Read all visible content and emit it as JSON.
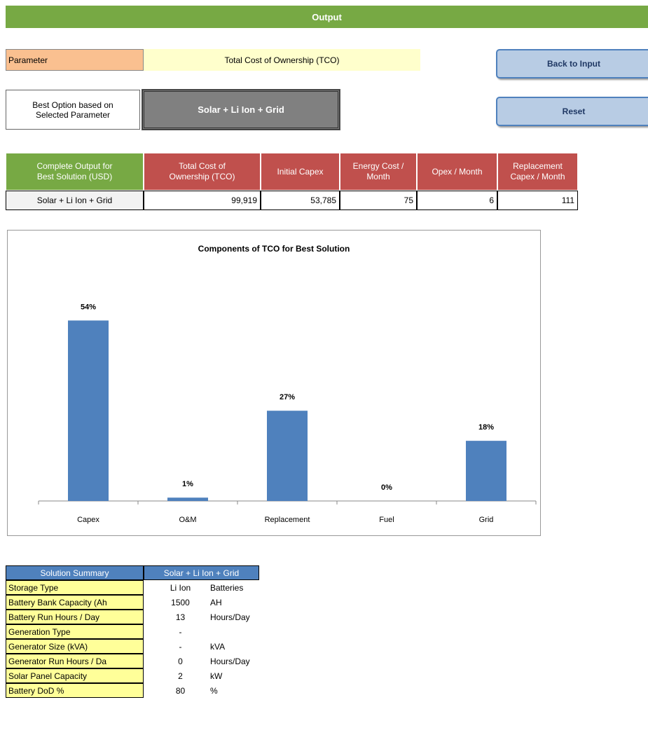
{
  "header": {
    "title": "Output"
  },
  "parameter": {
    "label": "Parameter",
    "value": "Total Cost of Ownership (TCO)"
  },
  "best_option": {
    "label_line1": "Best Option based on",
    "label_line2": "Selected Parameter",
    "value": "Solar + Li Ion + Grid"
  },
  "buttons": [
    "Back to Input",
    "Reset"
  ],
  "output_table": {
    "columns": [
      [
        "Complete Output for",
        "Best Solution (USD)"
      ],
      [
        "Total Cost of",
        "Ownership (TCO)"
      ],
      [
        "Initial Capex"
      ],
      [
        "Energy Cost /",
        "Month"
      ],
      [
        "Opex / Month"
      ],
      [
        "Replacement",
        "Capex / Month"
      ]
    ],
    "row": [
      "Solar + Li Ion + Grid",
      "99,919",
      "53,785",
      "75",
      "6",
      "111"
    ]
  },
  "chart_data": {
    "type": "bar",
    "title": "Components  of TCO for Best Solution",
    "categories": [
      "Capex",
      "O&M",
      "Replacement",
      "Fuel",
      "Grid"
    ],
    "values": [
      54,
      1,
      27,
      0,
      18
    ],
    "value_labels": [
      "54%",
      "1%",
      "27%",
      "0%",
      "18%"
    ],
    "color": "#4f81bd"
  },
  "summary_table": {
    "header": [
      "Solution Summary",
      "Solar + Li Ion + Grid"
    ],
    "rows": [
      {
        "label": "Storage Type",
        "value": "Li Ion",
        "unit": "Batteries"
      },
      {
        "label": "Battery Bank Capacity (Ah",
        "value": "1500",
        "unit": "AH"
      },
      {
        "label": "Battery Run Hours / Day",
        "value": "13",
        "unit": "Hours/Day"
      },
      {
        "label": "Generation Type",
        "value": "-"
      },
      {
        "label": "Generator Size (kVA)",
        "value": "-",
        "unit": "kVA"
      },
      {
        "label": "Generator Run Hours / Da",
        "value": "0",
        "unit": "Hours/Day"
      },
      {
        "label": "Solar Panel Capacity",
        "value": "2",
        "unit": "kW"
      },
      {
        "label": "Battery DoD %",
        "value": "80",
        "unit": "%"
      }
    ]
  }
}
